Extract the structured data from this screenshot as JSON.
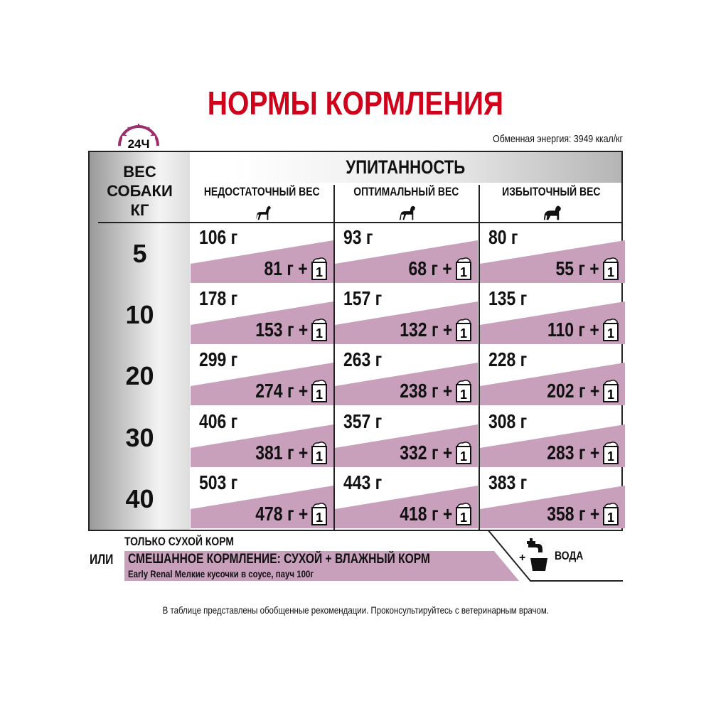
{
  "title": "НОРМЫ КОРМЛЕНИЯ",
  "clock_label": "24Ч",
  "energy": "Обменная энергия: 3949 ккал/кг",
  "header": {
    "weight": [
      "ВЕС",
      "СОБАКИ",
      "КГ"
    ],
    "condition": "УПИТАННОСТЬ",
    "columns": [
      "НЕДОСТАТОЧНЫЙ ВЕС",
      "ОПТИМАЛЬНЫЙ ВЕС",
      "ИЗБЫТОЧНЫЙ ВЕС"
    ]
  },
  "rows": [
    {
      "kg": "5",
      "cells": [
        {
          "dry": "106 г",
          "mix": "81 г +",
          "pouch": "1"
        },
        {
          "dry": "93 г",
          "mix": "68 г +",
          "pouch": "1"
        },
        {
          "dry": "80 г",
          "mix": "55 г +",
          "pouch": "1"
        }
      ]
    },
    {
      "kg": "10",
      "cells": [
        {
          "dry": "178 г",
          "mix": "153 г +",
          "pouch": "1"
        },
        {
          "dry": "157 г",
          "mix": "132 г +",
          "pouch": "1"
        },
        {
          "dry": "135 г",
          "mix": "110 г +",
          "pouch": "1"
        }
      ]
    },
    {
      "kg": "20",
      "cells": [
        {
          "dry": "299 г",
          "mix": "274 г +",
          "pouch": "1"
        },
        {
          "dry": "263 г",
          "mix": "238 г +",
          "pouch": "1"
        },
        {
          "dry": "228 г",
          "mix": "202 г +",
          "pouch": "1"
        }
      ]
    },
    {
      "kg": "30",
      "cells": [
        {
          "dry": "406 г",
          "mix": "381 г +",
          "pouch": "1"
        },
        {
          "dry": "357 г",
          "mix": "332 г +",
          "pouch": "1"
        },
        {
          "dry": "308 г",
          "mix": "283 г +",
          "pouch": "1"
        }
      ]
    },
    {
      "kg": "40",
      "cells": [
        {
          "dry": "503 г",
          "mix": "478 г +",
          "pouch": "1"
        },
        {
          "dry": "443 г",
          "mix": "418 г +",
          "pouch": "1"
        },
        {
          "dry": "383 г",
          "mix": "358 г +",
          "pouch": "1"
        }
      ]
    }
  ],
  "legend": {
    "dry_only": "ТОЛЬКО СУХОЙ КОРМ",
    "or": "ИЛИ",
    "mixed": "СМЕШАННОЕ КОРМЛЕНИЕ: СУХОЙ + ВЛАЖНЫЙ КОРМ",
    "product": "Early Renal Мелкие кусочки в соусе, пауч 100г",
    "water_plus": "+",
    "water": "ВОДА"
  },
  "footer": "В таблице представлены обобщенные рекомендации. Проконсультируйтесь с ветеринарным врачом.",
  "colors": {
    "title": "#d0021b",
    "pink": "#c9a0bc",
    "clock": "#9b2f6e"
  },
  "icons": [
    "clock-24h-icon",
    "dog-thin-icon",
    "dog-optimal-icon",
    "dog-overweight-icon",
    "pouch-icon",
    "water-tap-icon"
  ]
}
